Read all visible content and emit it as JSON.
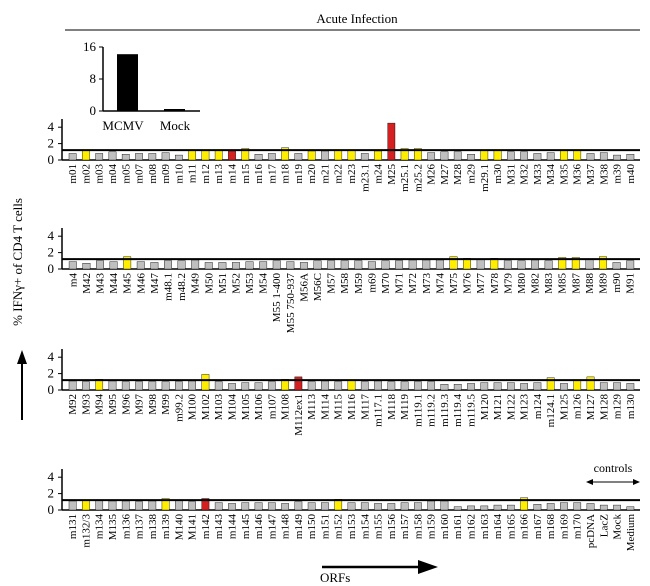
{
  "header": {
    "title": "Acute Infection"
  },
  "ylabel": "% IFNγ+ of CD4  T cells",
  "xlabel": "ORFs",
  "controls_label": "controls",
  "colors": {
    "gray": "#bfbfbf",
    "yellow": "#ffee00",
    "red": "#d42020",
    "black": "#000000"
  },
  "chart_data": [
    {
      "type": "bar",
      "name": "inset",
      "categories": [
        "MCMV",
        "Mock"
      ],
      "values": [
        14.2,
        0.5
      ],
      "ylim": [
        0,
        16
      ],
      "yticks": [
        0,
        8,
        16
      ]
    },
    {
      "type": "bar",
      "name": "panel1",
      "ylim": [
        0,
        5
      ],
      "yticks": [
        0,
        2,
        4
      ],
      "threshold": 1.2,
      "categories": [
        "m01",
        "m02",
        "m03",
        "m04",
        "m05",
        "m07",
        "m08",
        "m09",
        "m10",
        "m11",
        "m12",
        "m13",
        "m14",
        "m15",
        "m16",
        "m17",
        "m18",
        "m19",
        "m20",
        "m21",
        "m22",
        "m23",
        "m23.1",
        "m24",
        "M25",
        "m25.1",
        "m25.2",
        "M26",
        "M27",
        "M28",
        "m29",
        "m29.1",
        "m30",
        "M31",
        "M32",
        "M33",
        "M34",
        "M35",
        "M36",
        "M37",
        "M38",
        "m39",
        "m40"
      ],
      "values": [
        0.8,
        1.2,
        0.8,
        1.0,
        0.7,
        0.8,
        0.8,
        0.9,
        0.6,
        1.2,
        1.2,
        1.2,
        1.1,
        1.4,
        0.7,
        0.8,
        1.5,
        0.8,
        1.1,
        1.1,
        1.2,
        1.2,
        0.8,
        1.1,
        4.5,
        1.4,
        1.4,
        0.9,
        1.0,
        1.0,
        0.7,
        1.2,
        1.2,
        1.0,
        1.0,
        0.8,
        0.9,
        1.2,
        1.2,
        0.8,
        0.9,
        0.6,
        0.7
      ],
      "colors": [
        "g",
        "y",
        "g",
        "g",
        "g",
        "g",
        "g",
        "g",
        "g",
        "y",
        "y",
        "y",
        "r",
        "y",
        "g",
        "g",
        "y",
        "g",
        "y",
        "g",
        "y",
        "y",
        "g",
        "y",
        "r",
        "y",
        "y",
        "g",
        "g",
        "g",
        "g",
        "y",
        "y",
        "g",
        "g",
        "g",
        "g",
        "y",
        "y",
        "g",
        "g",
        "g",
        "g"
      ]
    },
    {
      "type": "bar",
      "name": "panel2",
      "ylim": [
        0,
        5
      ],
      "yticks": [
        0,
        2,
        4
      ],
      "threshold": 1.2,
      "categories": [
        "m4",
        "M42",
        "M43",
        "M44",
        "M45",
        "M46",
        "M47",
        "m48.1",
        "m48.2",
        "M49",
        "M50",
        "M51",
        "M52",
        "M53",
        "M54",
        "M55 1-400",
        "M55 750-937",
        "M56A",
        "M56C",
        "M57",
        "M58",
        "M59",
        "m69",
        "M70",
        "M71",
        "M72",
        "M73",
        "M74",
        "M75",
        "M76",
        "M77",
        "M78",
        "M79",
        "M80",
        "M82",
        "M83",
        "M85",
        "M87",
        "M88",
        "M89",
        "m90",
        "M91"
      ],
      "values": [
        0.9,
        0.7,
        1.0,
        0.9,
        1.5,
        0.9,
        0.8,
        1.0,
        1.0,
        1.1,
        0.8,
        0.8,
        0.8,
        0.9,
        0.9,
        1.0,
        0.9,
        0.8,
        1.0,
        1.0,
        1.0,
        1.0,
        0.9,
        1.0,
        1.0,
        1.1,
        1.1,
        1.1,
        1.5,
        1.3,
        1.2,
        1.3,
        1.0,
        1.0,
        1.1,
        1.0,
        1.4,
        1.4,
        1.2,
        1.5,
        0.8,
        1.0
      ],
      "colors": [
        "g",
        "g",
        "g",
        "g",
        "y",
        "g",
        "g",
        "g",
        "g",
        "g",
        "g",
        "g",
        "g",
        "g",
        "g",
        "g",
        "g",
        "g",
        "g",
        "g",
        "g",
        "g",
        "g",
        "g",
        "g",
        "g",
        "g",
        "g",
        "y",
        "y",
        "g",
        "y",
        "g",
        "g",
        "g",
        "g",
        "y",
        "y",
        "g",
        "y",
        "g",
        "g"
      ]
    },
    {
      "type": "bar",
      "name": "panel3",
      "ylim": [
        0,
        5
      ],
      "yticks": [
        0,
        2,
        4
      ],
      "threshold": 1.2,
      "categories": [
        "M92",
        "M93",
        "M94",
        "M95",
        "M96",
        "M97",
        "M98",
        "M99",
        "m99.2",
        "M100",
        "M102",
        "M103",
        "M104",
        "M105",
        "M106",
        "m107",
        "M108",
        "M112ex1",
        "M113",
        "M114",
        "M115",
        "M116",
        "M117",
        "m117.1",
        "M118",
        "M119",
        "m119.1",
        "m119.2",
        "m119.3",
        "m119.4",
        "m119.5",
        "M120",
        "M121",
        "M122",
        "M123",
        "m124",
        "m124.1",
        "M125",
        "m126",
        "M127",
        "M128",
        "m129",
        "m130"
      ],
      "values": [
        1.1,
        1.0,
        1.3,
        1.1,
        1.0,
        1.0,
        1.0,
        1.0,
        1.0,
        1.1,
        1.9,
        1.0,
        0.8,
        0.9,
        0.9,
        1.0,
        1.3,
        1.6,
        1.0,
        1.1,
        1.0,
        1.2,
        1.0,
        1.1,
        1.0,
        1.0,
        1.0,
        1.0,
        0.7,
        0.7,
        0.8,
        0.9,
        0.9,
        0.9,
        0.8,
        0.9,
        1.5,
        0.8,
        1.2,
        1.6,
        0.9,
        0.9,
        0.8
      ],
      "colors": [
        "g",
        "g",
        "y",
        "g",
        "g",
        "g",
        "g",
        "g",
        "g",
        "g",
        "y",
        "g",
        "g",
        "g",
        "g",
        "g",
        "y",
        "r",
        "g",
        "g",
        "g",
        "y",
        "g",
        "g",
        "g",
        "g",
        "g",
        "g",
        "g",
        "g",
        "g",
        "g",
        "g",
        "g",
        "g",
        "g",
        "y",
        "g",
        "y",
        "y",
        "g",
        "g",
        "g"
      ]
    },
    {
      "type": "bar",
      "name": "panel4",
      "ylim": [
        0,
        5
      ],
      "yticks": [
        0,
        2,
        4
      ],
      "threshold": 1.2,
      "categories": [
        "m131",
        "m132/3",
        "m134",
        "M135",
        "m136",
        "m137",
        "m138",
        "m139",
        "M140",
        "M141",
        "m142",
        "m143",
        "m144",
        "m145",
        "m146",
        "m147",
        "m148",
        "m149",
        "m150",
        "m151",
        "m152",
        "m153",
        "m154",
        "m155",
        "m156",
        "m157",
        "m158",
        "m159",
        "m160",
        "m161",
        "m162",
        "m163",
        "m164",
        "m165",
        "m166",
        "m167",
        "m168",
        "m169",
        "m170",
        "pcDNA",
        "LacZ",
        "Mock",
        "Medium"
      ],
      "values": [
        1.1,
        1.2,
        1.2,
        1.1,
        1.1,
        1.0,
        1.1,
        1.4,
        1.2,
        1.0,
        1.4,
        0.9,
        0.8,
        0.9,
        0.9,
        0.9,
        0.8,
        1.0,
        0.9,
        0.9,
        1.3,
        0.9,
        0.9,
        0.8,
        0.8,
        0.9,
        0.9,
        1.1,
        1.1,
        0.4,
        0.5,
        0.5,
        0.6,
        0.6,
        1.5,
        0.7,
        0.8,
        0.9,
        0.9,
        0.8,
        0.6,
        0.6,
        0.4
      ],
      "colors": [
        "g",
        "y",
        "g",
        "g",
        "g",
        "g",
        "g",
        "y",
        "g",
        "g",
        "r",
        "g",
        "g",
        "g",
        "g",
        "g",
        "g",
        "g",
        "g",
        "g",
        "y",
        "g",
        "g",
        "g",
        "g",
        "g",
        "g",
        "g",
        "g",
        "g",
        "g",
        "g",
        "g",
        "g",
        "y",
        "g",
        "g",
        "g",
        "g",
        "g",
        "g",
        "g",
        "g"
      ]
    }
  ]
}
